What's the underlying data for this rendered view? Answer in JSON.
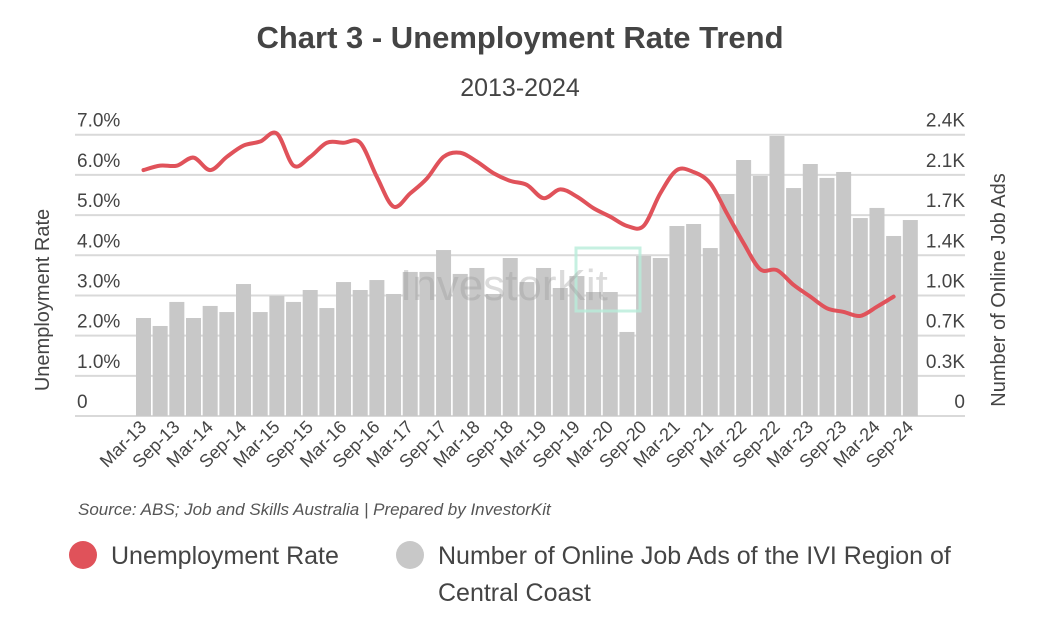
{
  "title": "Chart 3 - Unemployment Rate Trend",
  "subtitle": "2013-2024",
  "source": "Source: ABS; Job and Skills Australia | Prepared by InvestorKit",
  "watermark": "InvestorKit",
  "colors": {
    "line": "#e0525a",
    "bars": "#c8c8c8",
    "grid": "#d9d9d9",
    "watermark_accent": "#b8ecd9"
  },
  "legend": [
    {
      "label": "Unemployment Rate",
      "color": "#e0525a"
    },
    {
      "label": "Number of Online Job Ads of the IVI Region of Central Coast",
      "color": "#c8c8c8"
    }
  ],
  "chart_data": {
    "type": "bar+line",
    "title": "Chart 3 - Unemployment Rate Trend",
    "subtitle": "2013-2024",
    "ylabel_left": "Unemployment Rate",
    "ylabel_right": "Number of Online Job Ads",
    "ylim_left": [
      0,
      7
    ],
    "ylim_right": [
      0,
      2400
    ],
    "left_ticks": [
      "0",
      "1.0%",
      "2.0%",
      "3.0%",
      "4.0%",
      "5.0%",
      "6.0%",
      "7.0%"
    ],
    "right_ticks": [
      "0",
      "0.3K",
      "0.7K",
      "1.0K",
      "1.4K",
      "1.7K",
      "2.1K",
      "2.4K"
    ],
    "grid": true,
    "legend_position": "bottom",
    "categories": [
      "Mar-13",
      "Jun-13",
      "Sep-13",
      "Dec-13",
      "Mar-14",
      "Jun-14",
      "Sep-14",
      "Dec-14",
      "Mar-15",
      "Jun-15",
      "Sep-15",
      "Dec-15",
      "Mar-16",
      "Jun-16",
      "Sep-16",
      "Dec-16",
      "Mar-17",
      "Jun-17",
      "Sep-17",
      "Dec-17",
      "Mar-18",
      "Jun-18",
      "Sep-18",
      "Dec-18",
      "Mar-19",
      "Jun-19",
      "Sep-19",
      "Dec-19",
      "Mar-20",
      "Jun-20",
      "Sep-20",
      "Dec-20",
      "Mar-21",
      "Jun-21",
      "Sep-21",
      "Dec-21",
      "Mar-22",
      "Jun-22",
      "Sep-22",
      "Dec-22",
      "Mar-23",
      "Jun-23",
      "Sep-23",
      "Dec-23",
      "Mar-24",
      "Jun-24",
      "Sep-24"
    ],
    "x_tick_labels": [
      "Mar-13",
      "Sep-13",
      "Mar-14",
      "Sep-14",
      "Mar-15",
      "Sep-15",
      "Mar-16",
      "Sep-16",
      "Mar-17",
      "Sep-17",
      "Mar-18",
      "Sep-18",
      "Mar-19",
      "Sep-19",
      "Mar-20",
      "Sep-20",
      "Mar-21",
      "Sep-21",
      "Mar-22",
      "Sep-22",
      "Mar-23",
      "Sep-23",
      "Mar-24",
      "Sep-24"
    ],
    "series": [
      {
        "name": "Number of Online Job Ads of the IVI Region of Central Coast",
        "type": "bar",
        "axis": "right",
        "values": [
          836,
          768,
          973,
          836,
          939,
          887,
          1126,
          887,
          1024,
          973,
          1075,
          921,
          1143,
          1075,
          1160,
          1041,
          1229,
          1229,
          1416,
          1212,
          1263,
          1041,
          1348,
          1143,
          1263,
          1092,
          1194,
          1058,
          1058,
          717,
          1365,
          1348,
          1621,
          1638,
          1433,
          1894,
          2184,
          2048,
          2389,
          1945,
          2150,
          2031,
          2082,
          1689,
          1775,
          1536,
          1672
        ]
      },
      {
        "name": "Unemployment Rate",
        "type": "line",
        "axis": "left",
        "values": [
          6.12,
          6.23,
          6.23,
          6.43,
          6.12,
          6.45,
          6.73,
          6.83,
          7.03,
          6.23,
          6.45,
          6.8,
          6.8,
          6.8,
          5.95,
          5.21,
          5.54,
          5.91,
          6.45,
          6.55,
          6.33,
          6.04,
          5.85,
          5.75,
          5.42,
          5.64,
          5.46,
          5.17,
          4.96,
          4.73,
          4.73,
          5.54,
          6.12,
          6.07,
          5.79,
          5.04,
          4.3,
          3.65,
          3.63,
          3.26,
          2.97,
          2.68,
          2.59,
          2.49,
          2.72,
          2.97,
          null
        ]
      }
    ]
  }
}
